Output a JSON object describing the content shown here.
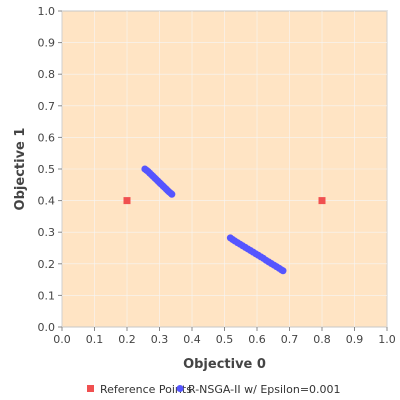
{
  "chart_data": {
    "type": "scatter",
    "title": "",
    "xlabel": "Objective 0",
    "ylabel": "Objective 1",
    "xlim": [
      0.0,
      1.0
    ],
    "ylim": [
      0.0,
      1.0
    ],
    "xticks": [
      "0.0",
      "0.1",
      "0.2",
      "0.3",
      "0.4",
      "0.5",
      "0.6",
      "0.7",
      "0.8",
      "0.9",
      "1.0"
    ],
    "yticks": [
      "0.0",
      "0.1",
      "0.2",
      "0.3",
      "0.4",
      "0.5",
      "0.6",
      "0.7",
      "0.8",
      "0.9",
      "1.0"
    ],
    "grid": true,
    "legend_position": "bottom",
    "plot_background": "#ffe4c4",
    "series": [
      {
        "name": "Reference Points",
        "marker": "square",
        "color": "#f05050",
        "points": [
          [
            0.2,
            0.4
          ],
          [
            0.8,
            0.4
          ]
        ]
      },
      {
        "name": "R-NSGA-II w/ Epsilon=0.001",
        "marker": "circle",
        "color": "#5555ff",
        "points": [
          [
            0.255,
            0.5
          ],
          [
            0.26,
            0.496
          ],
          [
            0.265,
            0.492
          ],
          [
            0.27,
            0.487
          ],
          [
            0.275,
            0.482
          ],
          [
            0.28,
            0.477
          ],
          [
            0.285,
            0.472
          ],
          [
            0.29,
            0.467
          ],
          [
            0.295,
            0.462
          ],
          [
            0.3,
            0.457
          ],
          [
            0.305,
            0.452
          ],
          [
            0.31,
            0.447
          ],
          [
            0.315,
            0.442
          ],
          [
            0.32,
            0.437
          ],
          [
            0.325,
            0.432
          ],
          [
            0.33,
            0.427
          ],
          [
            0.335,
            0.423
          ],
          [
            0.338,
            0.42
          ],
          [
            0.518,
            0.282
          ],
          [
            0.525,
            0.277
          ],
          [
            0.532,
            0.272
          ],
          [
            0.54,
            0.267
          ],
          [
            0.548,
            0.262
          ],
          [
            0.556,
            0.257
          ],
          [
            0.564,
            0.252
          ],
          [
            0.572,
            0.247
          ],
          [
            0.58,
            0.242
          ],
          [
            0.588,
            0.237
          ],
          [
            0.596,
            0.232
          ],
          [
            0.604,
            0.227
          ],
          [
            0.612,
            0.222
          ],
          [
            0.62,
            0.217
          ],
          [
            0.628,
            0.211
          ],
          [
            0.636,
            0.206
          ],
          [
            0.644,
            0.201
          ],
          [
            0.652,
            0.196
          ],
          [
            0.66,
            0.191
          ],
          [
            0.668,
            0.186
          ],
          [
            0.675,
            0.181
          ],
          [
            0.68,
            0.178
          ]
        ]
      }
    ]
  }
}
